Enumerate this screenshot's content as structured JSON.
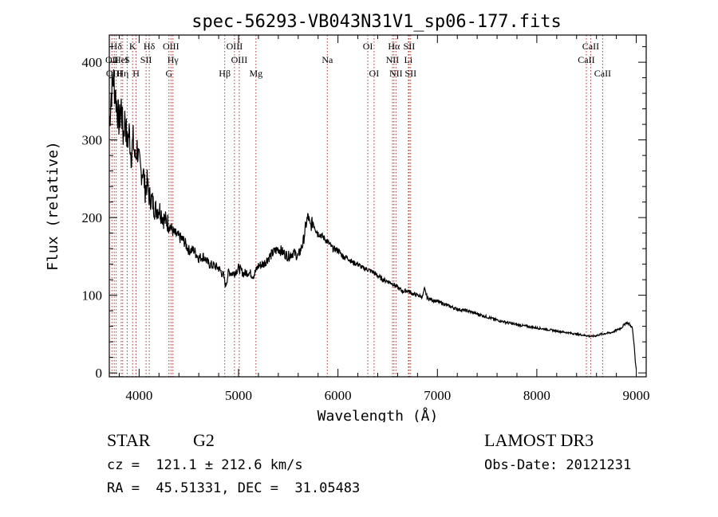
{
  "chart_data": {
    "type": "line",
    "title": "spec-56293-VB043N31V1_sp06-177.fits",
    "xlabel": "Wavelength (Å)",
    "ylabel": "Flux (relative)",
    "xlim": [
      3700,
      9100
    ],
    "ylim": [
      -5,
      435
    ],
    "xticks": [
      4000,
      5000,
      6000,
      7000,
      8000,
      9000
    ],
    "yticks": [
      0,
      100,
      200,
      300,
      400
    ],
    "grid": false,
    "series": [
      {
        "name": "spectrum",
        "x": [
          3700,
          3720,
          3740,
          3760,
          3780,
          3800,
          3820,
          3840,
          3860,
          3880,
          3900,
          3920,
          3940,
          3960,
          3980,
          4000,
          4020,
          4040,
          4060,
          4080,
          4100,
          4130,
          4160,
          4200,
          4250,
          4300,
          4350,
          4400,
          4450,
          4500,
          4550,
          4600,
          4650,
          4700,
          4750,
          4800,
          4850,
          4870,
          4900,
          4950,
          5000,
          5050,
          5100,
          5150,
          5200,
          5250,
          5300,
          5350,
          5400,
          5450,
          5500,
          5550,
          5600,
          5650,
          5680,
          5700,
          5720,
          5750,
          5800,
          5850,
          5900,
          5950,
          6000,
          6050,
          6100,
          6150,
          6200,
          6250,
          6300,
          6350,
          6400,
          6450,
          6500,
          6550,
          6600,
          6650,
          6700,
          6750,
          6800,
          6850,
          6870,
          6900,
          6950,
          7000,
          7100,
          7200,
          7300,
          7400,
          7500,
          7600,
          7700,
          7800,
          7900,
          8000,
          8100,
          8200,
          8300,
          8400,
          8500,
          8550,
          8600,
          8650,
          8700,
          8750,
          8800,
          8850,
          8900,
          8930,
          8960,
          8980,
          8990,
          9000
        ],
        "values": [
          320,
          360,
          380,
          360,
          340,
          320,
          345,
          305,
          330,
          295,
          310,
          280,
          300,
          275,
          290,
          270,
          258,
          262,
          235,
          245,
          228,
          222,
          210,
          212,
          198,
          192,
          180,
          175,
          170,
          158,
          158,
          148,
          150,
          140,
          138,
          135,
          125,
          112,
          130,
          128,
          135,
          128,
          130,
          125,
          138,
          140,
          148,
          155,
          160,
          155,
          150,
          155,
          150,
          168,
          192,
          202,
          188,
          195,
          180,
          175,
          168,
          160,
          158,
          150,
          148,
          142,
          140,
          135,
          133,
          130,
          125,
          120,
          118,
          115,
          110,
          105,
          106,
          102,
          100,
          98,
          108,
          96,
          94,
          92,
          87,
          82,
          80,
          76,
          72,
          68,
          65,
          62,
          60,
          58,
          56,
          54,
          52,
          50,
          48,
          47,
          48,
          50,
          51,
          52,
          55,
          58,
          65,
          63,
          58,
          35,
          15,
          5
        ]
      }
    ],
    "lines": [
      {
        "label": "Hδ",
        "x": 3770,
        "row": 0
      },
      {
        "label": "OII",
        "x": 3727,
        "row": 1
      },
      {
        "label": "OIII",
        "x": 3750,
        "row": 2
      },
      {
        "label": "HeI",
        "x": 3820,
        "row": 1
      },
      {
        "label": "Hη",
        "x": 3835,
        "row": 2
      },
      {
        "label": "K",
        "x": 3934,
        "row": 0
      },
      {
        "label": "S",
        "x": 3880,
        "row": 1
      },
      {
        "label": "H",
        "x": 3969,
        "row": 2
      },
      {
        "label": "SII",
        "x": 4070,
        "row": 1
      },
      {
        "label": "Hδ",
        "x": 4102,
        "row": 0
      },
      {
        "label": "OIII",
        "x": 4320,
        "row": 0
      },
      {
        "label": "Hγ",
        "x": 4340,
        "row": 1
      },
      {
        "label": "G",
        "x": 4300,
        "row": 2
      },
      {
        "label": "Hβ",
        "x": 4861,
        "row": 2
      },
      {
        "label": "OIII",
        "x": 4959,
        "row": 0
      },
      {
        "label": "OIII",
        "x": 5007,
        "row": 1
      },
      {
        "label": "Mg",
        "x": 5175,
        "row": 2
      },
      {
        "label": "Na",
        "x": 5893,
        "row": 1
      },
      {
        "label": "OI",
        "x": 6300,
        "row": 0
      },
      {
        "label": "OI",
        "x": 6363,
        "row": 2
      },
      {
        "label": "Hα",
        "x": 6563,
        "row": 0
      },
      {
        "label": "NII",
        "x": 6548,
        "row": 1
      },
      {
        "label": "NII",
        "x": 6583,
        "row": 2
      },
      {
        "label": "SII",
        "x": 6716,
        "row": 0
      },
      {
        "label": "Li",
        "x": 6708,
        "row": 1
      },
      {
        "label": "SII",
        "x": 6731,
        "row": 2
      },
      {
        "label": "CaII",
        "x": 8542,
        "row": 0
      },
      {
        "label": "CaII",
        "x": 8498,
        "row": 1
      },
      {
        "label": "CaII",
        "x": 8662,
        "row": 2
      }
    ]
  },
  "info": {
    "class": "STAR",
    "subclass": "G2",
    "survey": "LAMOST DR3",
    "redshift": "cz =  121.1 ± 212.6 km/s",
    "obs_date": "Obs-Date: 20121231",
    "coords": "RA =  45.51331, DEC =  31.05483"
  },
  "colors": {
    "spectrum": "#000000",
    "line_marker": "#b03030",
    "axis": "#000000"
  }
}
